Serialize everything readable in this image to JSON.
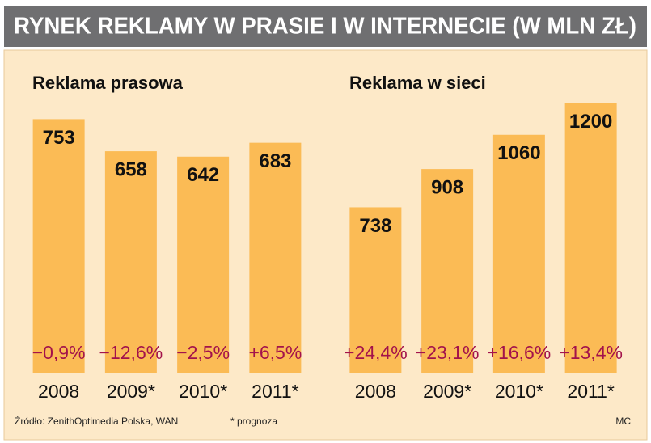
{
  "header": {
    "title": "RYNEK REKLAMY W PRASIE I W INTERNECIE (W MLN ZŁ)"
  },
  "chart_data": [
    {
      "type": "bar",
      "title": "Reklama prasowa",
      "categories": [
        "2008",
        "2009*",
        "2010*",
        "2011*"
      ],
      "values": [
        753,
        658,
        642,
        683
      ],
      "annotations": [
        "−0,9%",
        "−12,6%",
        "−2,5%",
        "+6,5%"
      ],
      "color": "#fbbb55",
      "ylim": [
        0,
        900
      ]
    },
    {
      "type": "bar",
      "title": "Reklama w sieci",
      "categories": [
        "2008",
        "2009*",
        "2010*",
        "2011*"
      ],
      "values": [
        738,
        908,
        1060,
        1200
      ],
      "annotations": [
        "+24,4%",
        "+23,1%",
        "+16,6%",
        "+13,4%"
      ],
      "color": "#fbbb55",
      "ylim": [
        0,
        1350
      ]
    }
  ],
  "footer": {
    "source": "Źródło: ZenithOptimedia Polska, WAN",
    "note": "* prognoza",
    "author": "MC"
  }
}
